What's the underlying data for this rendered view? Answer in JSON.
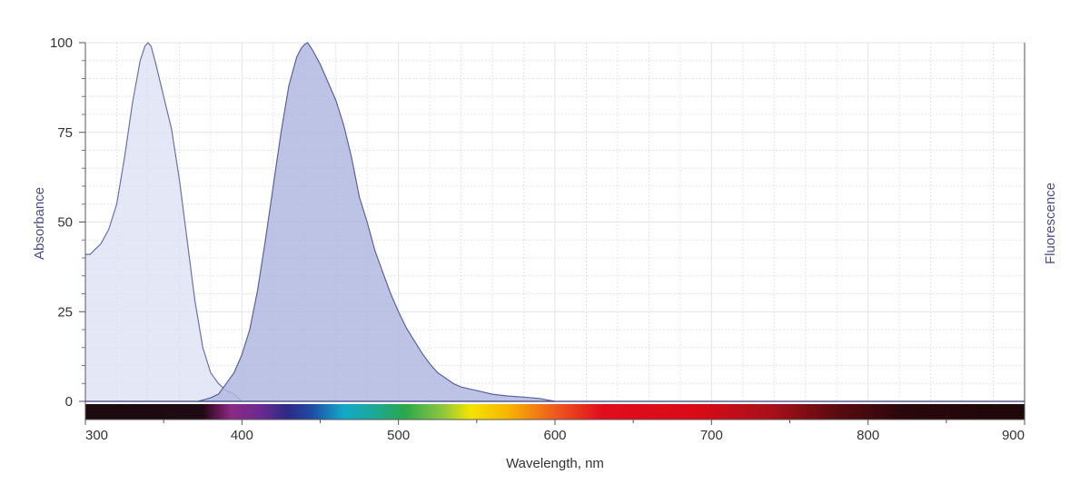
{
  "chart_data": {
    "type": "area",
    "xlabel": "Wavelength, nm",
    "ylabel_left": "Absorbance",
    "ylabel_right": "Fluorescence",
    "xlim": [
      300,
      900
    ],
    "ylim": [
      0,
      100
    ],
    "x_ticks": [
      300,
      400,
      500,
      600,
      700,
      800,
      900
    ],
    "y_ticks": [
      0,
      25,
      50,
      75,
      100
    ],
    "grid": true,
    "spectrum_bar": true,
    "colors": {
      "absorbance_fill": "#dfe3f3",
      "absorbance_line": "#6b72a8",
      "fluorescence_fill": "#b2b8e0",
      "fluorescence_line": "#5a62a0",
      "axis_title": "#4a4f8a",
      "grid": "#e4e4e4"
    },
    "series": [
      {
        "id": "absorbance",
        "x": [
          300,
          303,
          310,
          315,
          320,
          325,
          330,
          335,
          338,
          340,
          342,
          345,
          350,
          355,
          360,
          365,
          370,
          375,
          380,
          385,
          390,
          395,
          400
        ],
        "y": [
          41,
          41,
          44,
          48,
          55,
          68,
          83,
          95,
          99,
          100,
          99,
          94,
          85,
          76,
          62,
          45,
          28,
          15,
          8,
          5,
          3,
          2,
          0
        ]
      },
      {
        "id": "fluorescence",
        "x": [
          372,
          380,
          385,
          390,
          395,
          400,
          405,
          410,
          415,
          420,
          425,
          430,
          435,
          438,
          440,
          442,
          445,
          450,
          455,
          460,
          465,
          470,
          475,
          480,
          485,
          490,
          495,
          500,
          505,
          510,
          515,
          520,
          525,
          530,
          535,
          540,
          545,
          550,
          560,
          570,
          580,
          590,
          600
        ],
        "y": [
          0,
          1,
          2,
          5,
          8,
          13,
          20,
          31,
          45,
          60,
          75,
          88,
          96,
          98.5,
          99.5,
          100,
          98,
          94,
          89,
          84,
          77,
          68,
          57,
          50,
          42,
          36,
          30,
          25,
          20.5,
          17,
          13.5,
          10.5,
          8,
          6.5,
          5,
          4,
          3.5,
          3,
          2,
          1.5,
          1.2,
          0.8,
          0
        ]
      }
    ]
  }
}
